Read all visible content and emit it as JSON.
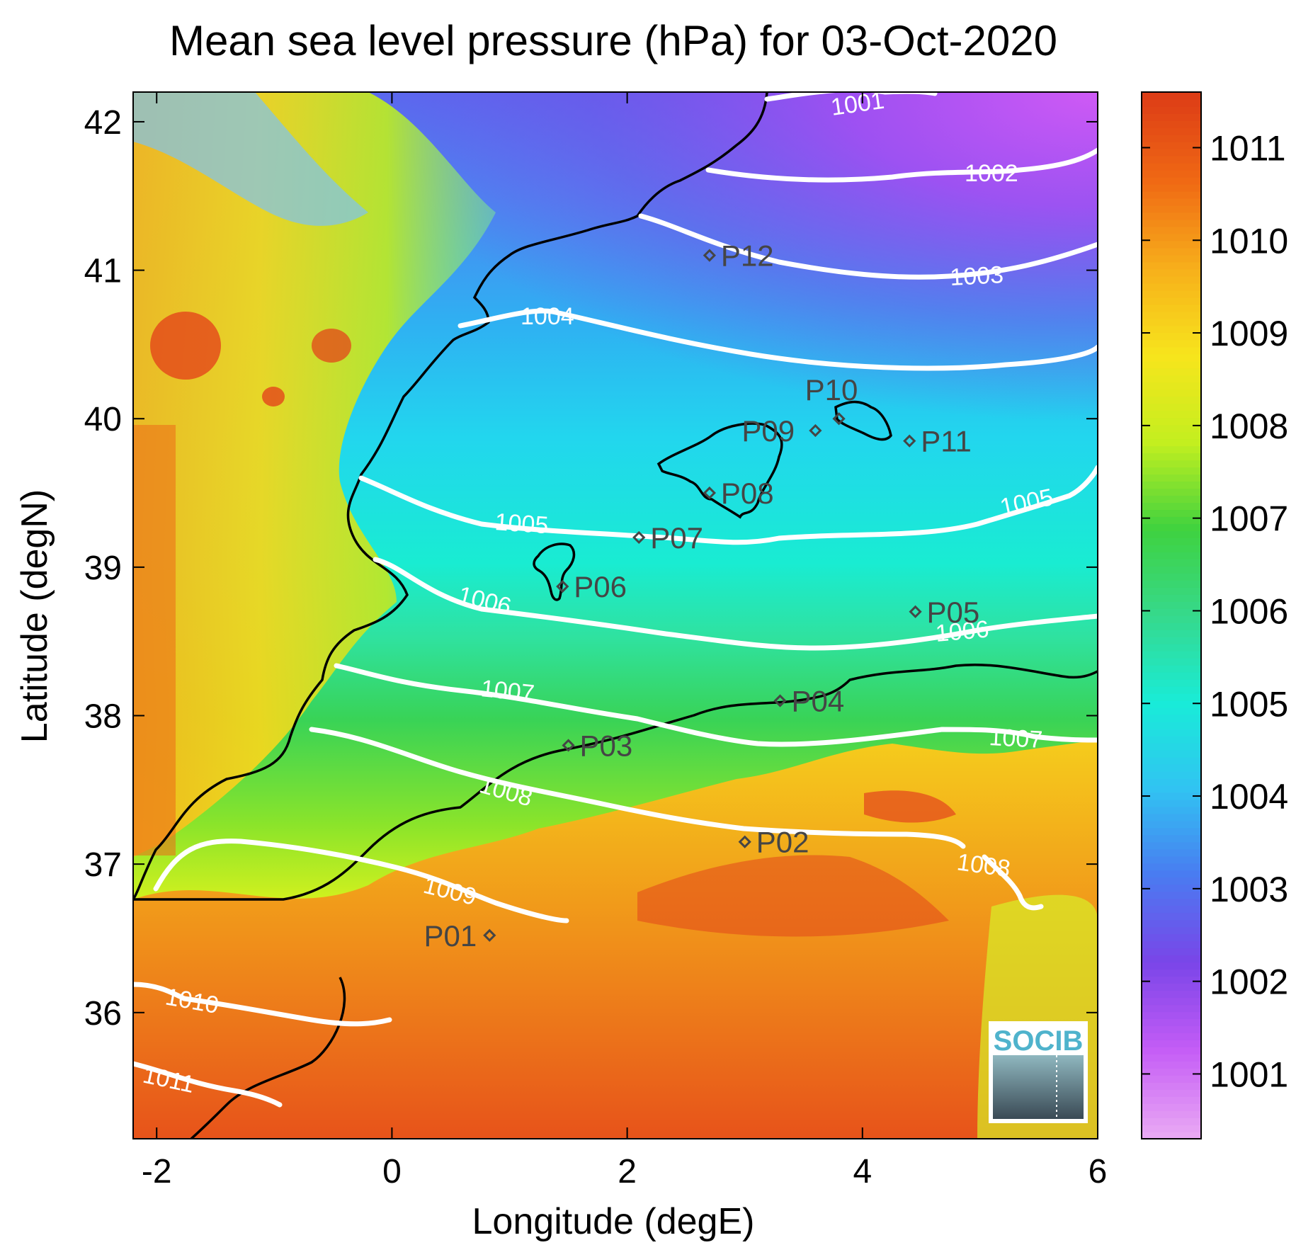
{
  "title": "Mean sea level pressure (hPa) for 03-Oct-2020",
  "xlabel": "Longitude (degE)",
  "ylabel": "Latitude (degN)",
  "xlim": [
    -2.2,
    6.0
  ],
  "ylim": [
    35.15,
    42.2
  ],
  "xticks": [
    "-2",
    "0",
    "2",
    "4",
    "6"
  ],
  "yticks": [
    "36",
    "37",
    "38",
    "39",
    "40",
    "41",
    "42"
  ],
  "colorbar": {
    "range": [
      1000.3,
      1011.6
    ],
    "ticks": [
      "1001",
      "1002",
      "1003",
      "1004",
      "1005",
      "1006",
      "1007",
      "1008",
      "1009",
      "1010",
      "1011"
    ],
    "colors": [
      "#e9a8f4",
      "#c45cf6",
      "#7a45e8",
      "#4a7bf1",
      "#31c3f2",
      "#19ecd8",
      "#36d98c",
      "#3fd23f",
      "#c3ef1f",
      "#f7e51c",
      "#f7b01b",
      "#f06a14",
      "#dd3d16"
    ]
  },
  "contour_labels": [
    "1001",
    "1002",
    "1003",
    "1004",
    "1005",
    "1005",
    "1006",
    "1006",
    "1007",
    "1007",
    "1008",
    "1008",
    "1009",
    "1010",
    "1011"
  ],
  "stations": [
    {
      "id": "P01",
      "lon": 0.83,
      "lat": 36.52
    },
    {
      "id": "P02",
      "lon": 3.0,
      "lat": 37.15
    },
    {
      "id": "P03",
      "lon": 1.5,
      "lat": 37.8
    },
    {
      "id": "P04",
      "lon": 3.3,
      "lat": 38.1
    },
    {
      "id": "P05",
      "lon": 4.45,
      "lat": 38.7
    },
    {
      "id": "P06",
      "lon": 1.45,
      "lat": 38.87
    },
    {
      "id": "P07",
      "lon": 2.1,
      "lat": 39.2
    },
    {
      "id": "P08",
      "lon": 2.7,
      "lat": 39.5
    },
    {
      "id": "P09",
      "lon": 3.6,
      "lat": 39.92
    },
    {
      "id": "P10",
      "lon": 3.8,
      "lat": 40.0
    },
    {
      "id": "P11",
      "lon": 4.4,
      "lat": 39.85
    },
    {
      "id": "P12",
      "lon": 2.7,
      "lat": 41.1
    }
  ],
  "logo": {
    "text": "SOCIB"
  }
}
